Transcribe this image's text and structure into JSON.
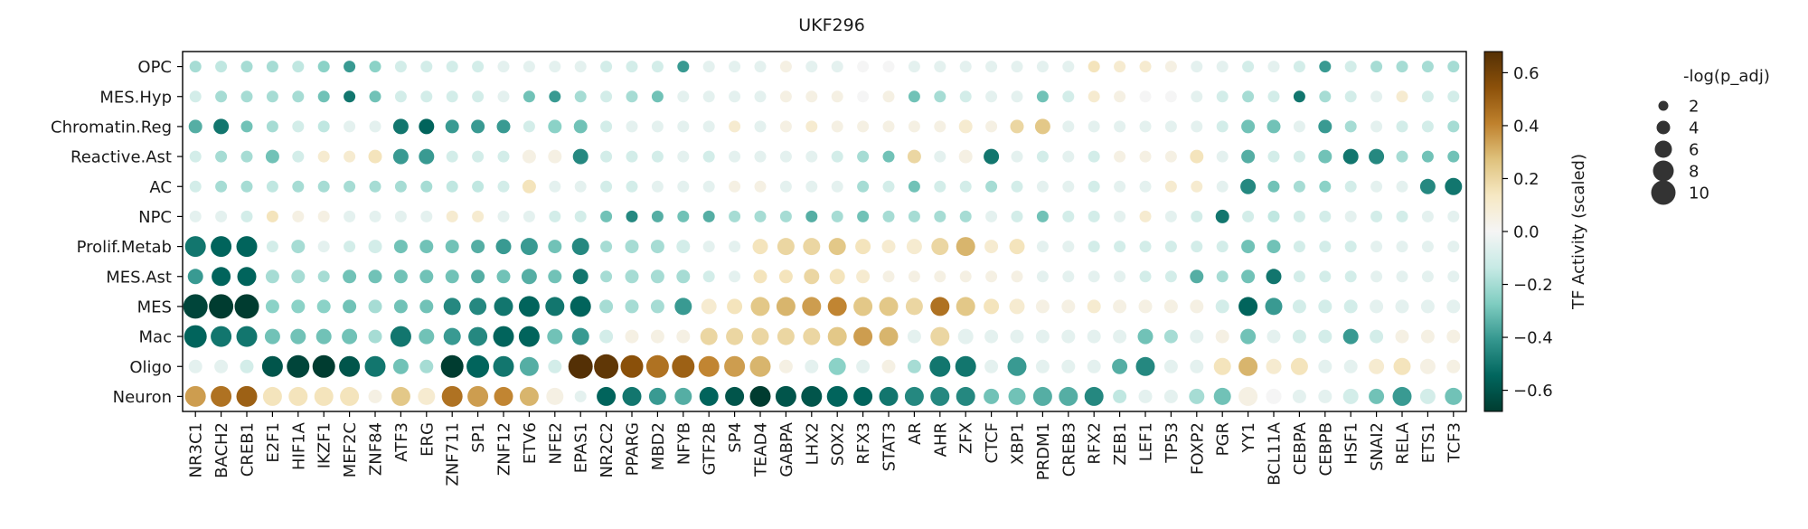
{
  "chart_data": {
    "type": "dotplot",
    "title": "UKF296",
    "rows": [
      "OPC",
      "MES.Hyp",
      "Chromatin.Reg",
      "Reactive.Ast",
      "AC",
      "NPC",
      "Prolif.Metab",
      "MES.Ast",
      "MES",
      "Mac",
      "Oligo",
      "Neuron"
    ],
    "columns": [
      "NR3C1",
      "BACH2",
      "CREB1",
      "E2F1",
      "HIF1A",
      "IKZF1",
      "MEF2C",
      "ZNF84",
      "ATF3",
      "ERG",
      "ZNF711",
      "SP1",
      "ZNF12",
      "ETV6",
      "NFE2",
      "EPAS1",
      "NR2C2",
      "PPARG",
      "MBD2",
      "NFYB",
      "GTF2B",
      "SP4",
      "TEAD4",
      "GABPA",
      "LHX2",
      "SOX2",
      "RFX3",
      "STAT3",
      "AR",
      "AHR",
      "ZFX",
      "CTCF",
      "XBP1",
      "PRDM1",
      "CREB3",
      "RFX2",
      "ZEB1",
      "LEF1",
      "TP53",
      "FOXP2",
      "PGR",
      "YY1",
      "BCL11A",
      "CEBPA",
      "CEBPB",
      "HSF1",
      "SNAI2",
      "RELA",
      "ETS1",
      "TCF3"
    ],
    "activity": [
      [
        -0.2,
        -0.15,
        -0.2,
        -0.2,
        -0.15,
        -0.25,
        -0.4,
        -0.25,
        -0.1,
        -0.1,
        -0.1,
        -0.1,
        -0.05,
        -0.05,
        -0.05,
        -0.05,
        -0.1,
        -0.1,
        -0.1,
        -0.4,
        -0.05,
        -0.05,
        -0.05,
        0.05,
        -0.05,
        -0.05,
        0.0,
        0.0,
        -0.05,
        -0.05,
        -0.05,
        -0.05,
        -0.05,
        -0.05,
        -0.05,
        0.15,
        0.1,
        0.1,
        0.05,
        -0.05,
        -0.05,
        -0.1,
        -0.05,
        -0.1,
        -0.4,
        -0.1,
        -0.2,
        -0.2,
        -0.2,
        -0.2
      ],
      [
        -0.1,
        -0.2,
        -0.2,
        -0.2,
        -0.2,
        -0.3,
        -0.5,
        -0.3,
        -0.1,
        -0.1,
        -0.1,
        -0.1,
        -0.05,
        -0.3,
        -0.4,
        -0.2,
        -0.1,
        -0.2,
        -0.3,
        -0.05,
        -0.05,
        -0.05,
        -0.05,
        0.05,
        0.05,
        0.05,
        0.0,
        0.05,
        -0.3,
        -0.2,
        -0.1,
        -0.05,
        -0.05,
        -0.3,
        -0.1,
        0.1,
        0.05,
        0.0,
        0.0,
        -0.05,
        -0.1,
        -0.2,
        -0.1,
        -0.5,
        -0.2,
        -0.1,
        -0.05,
        0.1,
        -0.1,
        -0.1
      ],
      [
        -0.35,
        -0.5,
        -0.3,
        -0.2,
        -0.1,
        -0.15,
        -0.05,
        -0.05,
        -0.5,
        -0.55,
        -0.4,
        -0.4,
        -0.4,
        -0.1,
        -0.25,
        -0.3,
        -0.1,
        -0.05,
        -0.05,
        -0.05,
        -0.05,
        0.1,
        -0.05,
        0.05,
        0.1,
        0.05,
        0.05,
        0.05,
        0.05,
        0.05,
        0.1,
        0.05,
        0.2,
        0.25,
        -0.05,
        -0.05,
        -0.05,
        -0.05,
        -0.05,
        -0.05,
        -0.1,
        -0.3,
        -0.3,
        -0.05,
        -0.4,
        -0.2,
        -0.05,
        -0.1,
        -0.1,
        -0.2
      ],
      [
        -0.1,
        -0.2,
        -0.2,
        -0.3,
        -0.1,
        0.1,
        0.1,
        0.15,
        -0.4,
        -0.4,
        -0.1,
        -0.1,
        -0.1,
        0.05,
        0.05,
        -0.45,
        -0.1,
        -0.1,
        -0.1,
        -0.05,
        -0.1,
        -0.05,
        -0.05,
        -0.05,
        -0.05,
        -0.1,
        -0.2,
        -0.3,
        0.2,
        -0.05,
        0.05,
        -0.5,
        -0.05,
        -0.1,
        -0.05,
        -0.1,
        0.05,
        0.05,
        0.05,
        0.15,
        -0.05,
        -0.35,
        -0.1,
        -0.1,
        -0.3,
        -0.5,
        -0.45,
        -0.2,
        -0.3,
        -0.3
      ],
      [
        -0.1,
        -0.2,
        -0.2,
        -0.15,
        -0.2,
        -0.2,
        -0.2,
        -0.2,
        -0.2,
        -0.2,
        -0.15,
        -0.15,
        -0.1,
        0.15,
        -0.05,
        -0.05,
        -0.1,
        -0.1,
        -0.05,
        -0.05,
        -0.05,
        0.05,
        0.05,
        -0.05,
        -0.05,
        -0.05,
        -0.2,
        -0.1,
        -0.3,
        -0.1,
        -0.1,
        -0.2,
        -0.1,
        -0.05,
        -0.05,
        -0.1,
        -0.05,
        -0.05,
        0.1,
        0.1,
        -0.05,
        -0.45,
        -0.3,
        -0.2,
        -0.25,
        -0.1,
        -0.05,
        -0.05,
        -0.45,
        -0.5
      ],
      [
        -0.05,
        -0.05,
        -0.1,
        0.15,
        0.05,
        0.05,
        -0.05,
        -0.05,
        -0.05,
        -0.05,
        0.1,
        0.1,
        -0.05,
        -0.05,
        -0.1,
        -0.1,
        -0.3,
        -0.45,
        -0.35,
        -0.3,
        -0.35,
        -0.2,
        -0.2,
        -0.2,
        -0.35,
        -0.2,
        -0.3,
        -0.2,
        -0.2,
        -0.2,
        -0.2,
        -0.05,
        -0.1,
        -0.3,
        -0.1,
        -0.1,
        -0.05,
        0.1,
        -0.05,
        -0.1,
        -0.5,
        -0.1,
        -0.15,
        -0.1,
        -0.1,
        -0.05,
        -0.1,
        -0.1,
        -0.05,
        -0.05
      ],
      [
        -0.5,
        -0.55,
        -0.55,
        -0.1,
        -0.2,
        -0.05,
        -0.1,
        -0.1,
        -0.3,
        -0.3,
        -0.3,
        -0.35,
        -0.4,
        -0.4,
        -0.3,
        -0.45,
        -0.2,
        -0.2,
        -0.2,
        -0.1,
        -0.05,
        -0.05,
        0.15,
        0.2,
        0.2,
        0.25,
        0.15,
        0.1,
        0.1,
        0.2,
        0.3,
        0.1,
        0.15,
        -0.05,
        -0.05,
        -0.1,
        -0.1,
        -0.1,
        -0.1,
        -0.1,
        -0.1,
        -0.3,
        -0.3,
        -0.1,
        -0.1,
        -0.1,
        -0.05,
        -0.05,
        -0.05,
        -0.05
      ],
      [
        -0.4,
        -0.55,
        -0.55,
        -0.2,
        -0.2,
        -0.2,
        -0.3,
        -0.3,
        -0.3,
        -0.3,
        -0.3,
        -0.35,
        -0.3,
        -0.35,
        -0.3,
        -0.5,
        -0.2,
        -0.2,
        -0.2,
        -0.2,
        -0.1,
        -0.05,
        0.15,
        0.15,
        0.2,
        0.15,
        0.1,
        0.05,
        0.05,
        0.05,
        0.05,
        0.05,
        0.05,
        -0.05,
        -0.05,
        -0.05,
        -0.05,
        -0.1,
        -0.1,
        -0.35,
        -0.2,
        -0.3,
        -0.5,
        -0.1,
        -0.1,
        -0.1,
        -0.05,
        -0.05,
        -0.05,
        -0.05
      ],
      [
        -0.65,
        -0.68,
        -0.68,
        -0.25,
        -0.25,
        -0.25,
        -0.3,
        -0.2,
        -0.3,
        -0.3,
        -0.45,
        -0.45,
        -0.5,
        -0.55,
        -0.5,
        -0.55,
        -0.2,
        -0.2,
        -0.2,
        -0.4,
        0.1,
        0.15,
        0.25,
        0.3,
        0.35,
        0.4,
        0.25,
        0.25,
        0.2,
        0.45,
        0.25,
        0.15,
        0.1,
        0.05,
        0.05,
        0.1,
        0.05,
        0.05,
        0.05,
        0.05,
        -0.1,
        -0.55,
        -0.4,
        -0.1,
        -0.1,
        -0.1,
        -0.05,
        -0.05,
        -0.05,
        -0.05
      ],
      [
        -0.55,
        -0.5,
        -0.5,
        -0.3,
        -0.3,
        -0.3,
        -0.3,
        -0.2,
        -0.5,
        -0.3,
        -0.4,
        -0.45,
        -0.55,
        -0.55,
        -0.3,
        -0.4,
        -0.1,
        0.05,
        0.05,
        0.05,
        0.2,
        0.2,
        0.2,
        0.2,
        0.2,
        0.25,
        0.35,
        0.3,
        -0.05,
        0.2,
        -0.05,
        -0.05,
        -0.05,
        -0.05,
        -0.05,
        -0.05,
        -0.05,
        -0.3,
        -0.2,
        -0.05,
        0.05,
        -0.3,
        -0.05,
        -0.1,
        -0.1,
        -0.4,
        -0.1,
        0.05,
        0.05,
        0.05
      ],
      [
        -0.05,
        -0.05,
        -0.1,
        -0.6,
        -0.65,
        -0.68,
        -0.6,
        -0.5,
        -0.3,
        -0.2,
        -0.68,
        -0.55,
        -0.5,
        -0.35,
        -0.1,
        0.68,
        0.65,
        0.55,
        0.45,
        0.5,
        0.4,
        0.35,
        0.3,
        0.05,
        -0.05,
        -0.25,
        -0.05,
        0.05,
        -0.2,
        -0.5,
        -0.5,
        -0.05,
        -0.4,
        -0.05,
        -0.05,
        -0.05,
        -0.35,
        -0.45,
        -0.05,
        -0.05,
        0.15,
        0.3,
        0.1,
        0.15,
        -0.05,
        -0.05,
        0.1,
        0.15,
        0.05,
        0.05
      ],
      [
        0.35,
        0.45,
        0.5,
        0.15,
        0.15,
        0.15,
        0.15,
        0.05,
        0.25,
        0.1,
        0.45,
        0.35,
        0.4,
        0.3,
        0.05,
        -0.05,
        -0.55,
        -0.5,
        -0.4,
        -0.35,
        -0.55,
        -0.6,
        -0.68,
        -0.6,
        -0.6,
        -0.55,
        -0.55,
        -0.5,
        -0.45,
        -0.45,
        -0.45,
        -0.3,
        -0.3,
        -0.35,
        -0.35,
        -0.45,
        -0.15,
        -0.05,
        -0.05,
        -0.2,
        -0.3,
        0.05,
        0.0,
        -0.05,
        -0.05,
        -0.1,
        -0.3,
        -0.4,
        -0.1,
        -0.3
      ]
    ],
    "significance": [
      [
        3,
        3,
        3,
        3,
        3,
        3,
        3,
        3,
        3,
        3,
        3,
        3,
        3,
        3,
        3,
        3,
        3,
        3,
        3,
        3,
        3,
        3,
        3,
        3,
        3,
        3,
        3,
        3,
        3,
        3,
        3,
        3,
        3,
        3,
        3,
        3,
        3,
        3,
        3,
        3,
        3,
        3,
        3,
        3,
        3,
        3,
        3,
        3,
        3,
        3
      ],
      [
        3,
        3,
        3,
        3,
        3,
        3,
        3,
        3,
        3,
        3,
        3,
        3,
        3,
        3,
        3,
        3,
        3,
        3,
        3,
        3,
        3,
        3,
        3,
        3,
        3,
        3,
        3,
        3,
        3,
        3,
        3,
        3,
        3,
        3,
        3,
        3,
        3,
        3,
        3,
        3,
        3,
        3,
        3,
        3,
        3,
        3,
        3,
        3,
        3,
        3
      ],
      [
        4,
        5,
        3,
        3,
        3,
        3,
        3,
        3,
        5,
        5,
        4,
        4,
        4,
        3,
        4,
        4,
        3,
        3,
        3,
        3,
        3,
        3,
        3,
        3,
        3,
        3,
        3,
        3,
        3,
        3,
        4,
        3,
        4,
        5,
        3,
        3,
        3,
        3,
        3,
        3,
        3,
        4,
        4,
        3,
        4,
        3,
        3,
        3,
        3,
        3
      ],
      [
        3,
        3,
        3,
        4,
        3,
        3,
        3,
        4,
        5,
        5,
        3,
        3,
        3,
        4,
        4,
        5,
        3,
        3,
        3,
        3,
        3,
        3,
        3,
        3,
        3,
        3,
        3,
        3,
        4,
        3,
        4,
        5,
        3,
        3,
        3,
        3,
        3,
        3,
        3,
        4,
        3,
        4,
        3,
        3,
        4,
        5,
        5,
        3,
        3,
        3
      ],
      [
        3,
        3,
        3,
        3,
        3,
        3,
        3,
        3,
        3,
        3,
        3,
        3,
        3,
        4,
        3,
        3,
        3,
        3,
        3,
        3,
        3,
        3,
        3,
        3,
        3,
        3,
        3,
        3,
        3,
        3,
        3,
        3,
        3,
        3,
        3,
        3,
        3,
        3,
        3,
        3,
        3,
        5,
        3,
        3,
        3,
        3,
        3,
        3,
        5,
        6
      ],
      [
        3,
        3,
        3,
        3,
        3,
        3,
        3,
        3,
        3,
        3,
        3,
        3,
        3,
        3,
        3,
        3,
        3,
        3,
        3,
        3,
        3,
        3,
        3,
        3,
        3,
        3,
        3,
        3,
        3,
        3,
        3,
        3,
        3,
        3,
        3,
        3,
        3,
        3,
        3,
        3,
        4,
        3,
        3,
        3,
        3,
        3,
        3,
        3,
        3,
        3
      ],
      [
        8,
        8,
        8,
        3,
        4,
        3,
        3,
        4,
        4,
        4,
        4,
        4,
        5,
        6,
        4,
        6,
        3,
        4,
        4,
        4,
        3,
        3,
        5,
        6,
        6,
        6,
        5,
        4,
        5,
        6,
        7,
        4,
        5,
        3,
        3,
        3,
        3,
        3,
        3,
        3,
        3,
        4,
        4,
        3,
        3,
        3,
        3,
        3,
        3,
        3
      ],
      [
        5,
        7,
        7,
        4,
        4,
        3,
        4,
        4,
        4,
        4,
        4,
        4,
        4,
        5,
        4,
        5,
        3,
        4,
        4,
        4,
        3,
        3,
        4,
        4,
        5,
        5,
        4,
        3,
        3,
        3,
        3,
        3,
        3,
        3,
        3,
        3,
        3,
        3,
        3,
        4,
        3,
        4,
        5,
        3,
        3,
        3,
        3,
        3,
        3,
        3
      ],
      [
        10,
        10,
        10,
        4,
        4,
        4,
        4,
        4,
        4,
        4,
        6,
        6,
        7,
        8,
        7,
        8,
        4,
        4,
        4,
        6,
        5,
        5,
        7,
        7,
        7,
        7,
        7,
        7,
        6,
        7,
        7,
        5,
        5,
        4,
        4,
        4,
        4,
        4,
        4,
        4,
        4,
        7,
        6,
        4,
        4,
        4,
        4,
        4,
        4,
        4
      ],
      [
        9,
        8,
        8,
        5,
        5,
        5,
        5,
        4,
        8,
        5,
        6,
        7,
        8,
        8,
        5,
        6,
        4,
        4,
        4,
        4,
        6,
        6,
        6,
        6,
        6,
        7,
        7,
        7,
        4,
        7,
        5,
        4,
        4,
        4,
        4,
        4,
        4,
        5,
        4,
        4,
        4,
        5,
        4,
        4,
        4,
        5,
        4,
        4,
        4,
        4
      ],
      [
        4,
        4,
        4,
        8,
        9,
        9,
        8,
        8,
        5,
        4,
        9,
        9,
        8,
        7,
        4,
        10,
        10,
        9,
        9,
        9,
        8,
        8,
        8,
        4,
        4,
        6,
        4,
        4,
        4,
        8,
        8,
        4,
        7,
        4,
        4,
        4,
        5,
        7,
        4,
        4,
        6,
        7,
        5,
        6,
        4,
        4,
        5,
        6,
        5,
        4
      ],
      [
        8,
        8,
        8,
        7,
        7,
        7,
        7,
        4,
        7,
        6,
        8,
        8,
        7,
        7,
        6,
        3,
        7,
        7,
        6,
        6,
        7,
        7,
        8,
        8,
        8,
        8,
        7,
        7,
        7,
        7,
        7,
        5,
        6,
        7,
        7,
        7,
        4,
        4,
        4,
        5,
        6,
        7,
        5,
        4,
        4,
        5,
        5,
        7,
        5,
        6
      ]
    ],
    "colorbar": {
      "label": "TF Activity (scaled)",
      "range": [
        -0.68,
        0.68
      ],
      "ticks": [
        -0.6,
        -0.4,
        -0.2,
        0.0,
        0.2,
        0.4,
        0.6
      ],
      "tick_labels": [
        "−0.6",
        "−0.4",
        "−0.2",
        "0.0",
        "0.2",
        "0.4",
        "0.6"
      ],
      "colormap": "BrBG_r",
      "colors": [
        "#003c30",
        "#01665e",
        "#35978f",
        "#80cdc1",
        "#c7eae5",
        "#f5f5f5",
        "#f6e8c3",
        "#dfc27d",
        "#bf812d",
        "#8c510a",
        "#543005"
      ]
    },
    "size_legend": {
      "title": "-log(p_adj)",
      "values": [
        2,
        4,
        6,
        8,
        10
      ],
      "labels": [
        "2",
        "4",
        "6",
        "8",
        "10"
      ]
    },
    "dot_color": "#333333"
  }
}
